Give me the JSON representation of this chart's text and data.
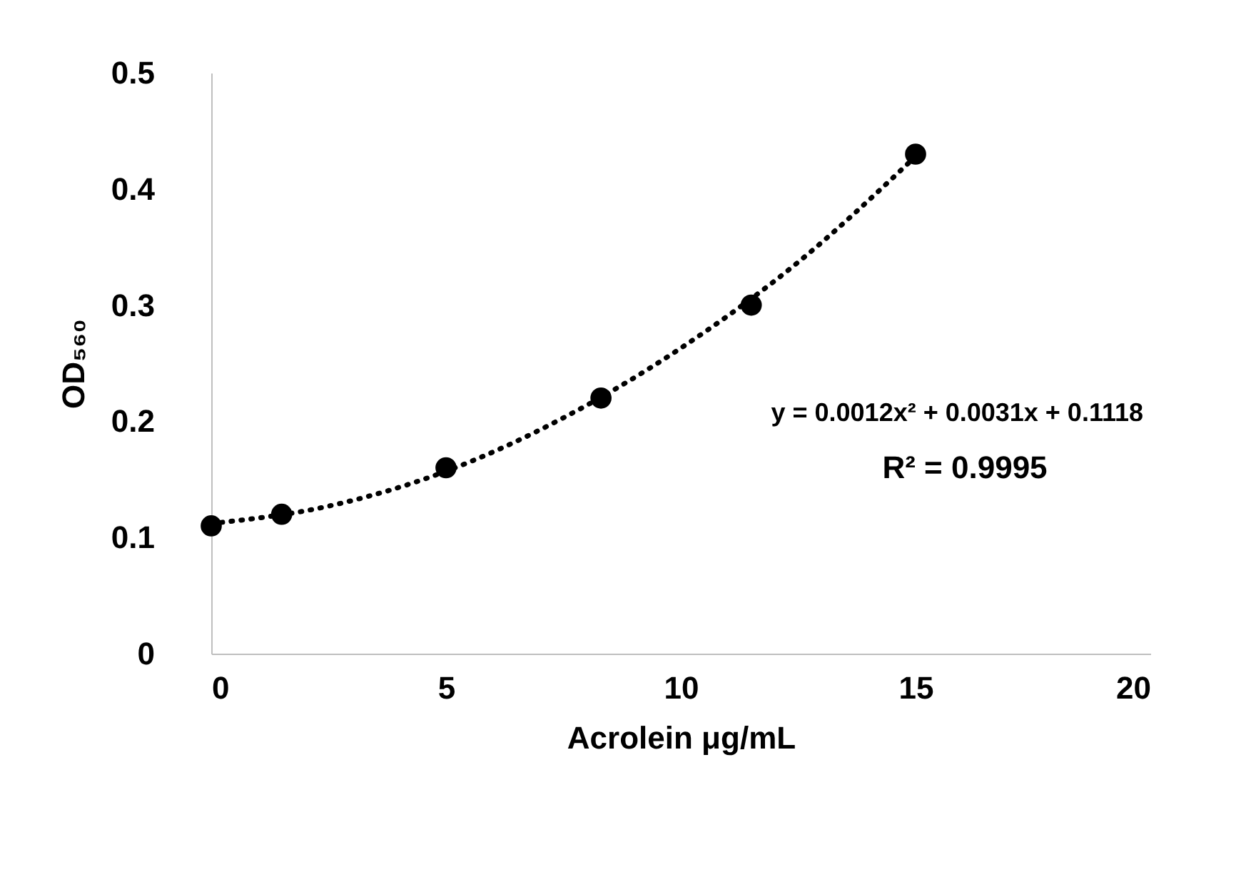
{
  "chart_data": {
    "type": "scatter",
    "xlabel": "Acrolein μg/mL",
    "ylabel": "OD₅₆₀",
    "xlim": [
      0,
      20
    ],
    "xticks": [
      0,
      5,
      10,
      15,
      20
    ],
    "ylim": [
      0,
      0.5
    ],
    "yticks": [
      0,
      0.1,
      0.2,
      0.3,
      0.4,
      0.5
    ],
    "grid": false,
    "series": [
      {
        "color": "#000000",
        "marker": "circle",
        "x": [
          0,
          1.5,
          5,
          8.3,
          11.5,
          15
        ],
        "values": [
          0.11,
          0.12,
          0.16,
          0.22,
          0.3,
          0.43
        ]
      },
      {
        "type": "line",
        "color": "#000000",
        "line_style": "dotted",
        "marker": "none",
        "x": [
          0,
          2.5,
          5,
          7.5,
          10,
          12.5,
          15
        ],
        "values": [
          0.112,
          0.127,
          0.157,
          0.203,
          0.263,
          0.337,
          0.428
        ]
      }
    ],
    "annotations": [
      "y = 0.0012x² + 0.0031x + 0.1118",
      "R² = 0.9995"
    ]
  }
}
